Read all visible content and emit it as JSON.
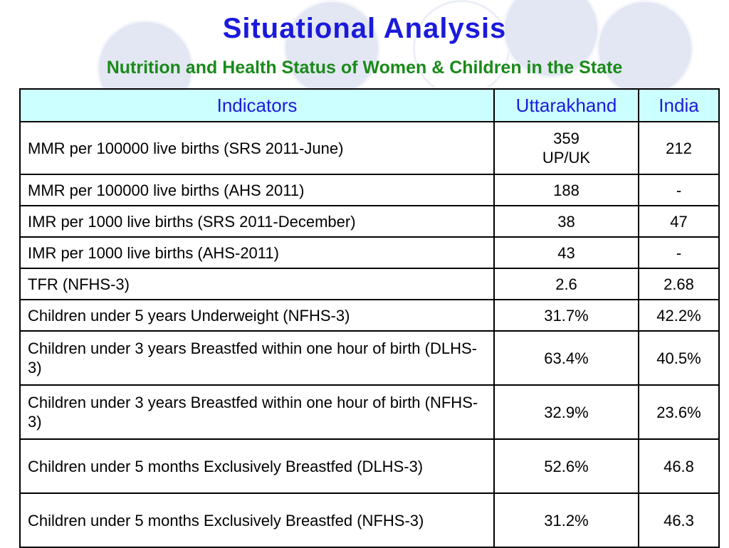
{
  "slide": {
    "title": "Situational Analysis",
    "subtitle": "Nutrition and Health Status of Women & Children in the State"
  },
  "table": {
    "headers": [
      "Indicators",
      "Uttarakhand",
      "India"
    ],
    "rows": [
      {
        "indicator": "MMR per 100000 live births  (SRS 2011-June)",
        "uttarakhand_line1": "359",
        "uttarakhand_line2": "UP/UK",
        "india": "212"
      },
      {
        "indicator": "MMR per 100000 live births  (AHS 2011)",
        "uttarakhand": "188",
        "india": "-"
      },
      {
        "indicator": "IMR per 1000 live births (SRS 2011-December)",
        "uttarakhand": "38",
        "india": "47"
      },
      {
        "indicator": "IMR per 1000 live births (AHS-2011)",
        "uttarakhand": "43",
        "india": "-"
      },
      {
        "indicator": "TFR (NFHS-3)",
        "uttarakhand": "2.6",
        "india": "2.68"
      },
      {
        "indicator": "Children under 5 years Underweight (NFHS-3)",
        "uttarakhand": "31.7%",
        "india": "42.2%"
      },
      {
        "indicator": "Children under 3 years Breastfed within one hour of birth  (DLHS-3)",
        "uttarakhand": "63.4%",
        "india": "40.5%"
      },
      {
        "indicator": "Children under 3 years Breastfed within one hour of birth  (NFHS-3)",
        "uttarakhand": "32.9%",
        "india": "23.6%"
      },
      {
        "indicator": "Children under 5 months Exclusively Breastfed (DLHS-3)",
        "uttarakhand": "52.6%",
        "india": "46.8"
      },
      {
        "indicator": "Children under 5 months Exclusively Breastfed (NFHS-3)",
        "uttarakhand": "31.2%",
        "india": "46.3"
      }
    ]
  },
  "colors": {
    "title": "#1a1adc",
    "subtitle": "#1a8a1a",
    "header_bg": "#ccffff",
    "decor_circle": "#e3e7f3"
  }
}
